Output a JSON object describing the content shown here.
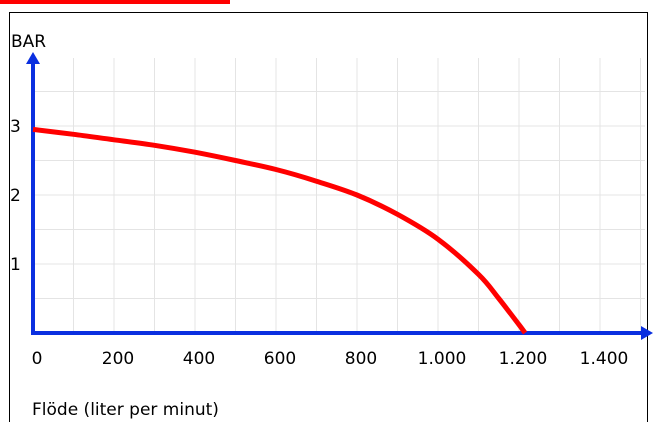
{
  "chart_data": {
    "type": "line",
    "title": "",
    "xlabel": "Flöde (liter per minut)",
    "ylabel": "BAR",
    "xlim": [
      0,
      1400
    ],
    "ylim": [
      0,
      3.6
    ],
    "grid": true,
    "x_ticks": [
      {
        "value": 0,
        "label": "0"
      },
      {
        "value": 200,
        "label": "200"
      },
      {
        "value": 400,
        "label": "400"
      },
      {
        "value": 600,
        "label": "600"
      },
      {
        "value": 800,
        "label": "800"
      },
      {
        "value": 1000,
        "label": "1.000"
      },
      {
        "value": 1200,
        "label": "1.200"
      },
      {
        "value": 1400,
        "label": "1.400"
      }
    ],
    "y_ticks": [
      {
        "value": 1,
        "label": "1"
      },
      {
        "value": 2,
        "label": "2"
      },
      {
        "value": 3,
        "label": "3"
      }
    ],
    "series": [
      {
        "color": "#ff0000",
        "x": [
          0,
          100,
          200,
          300,
          400,
          500,
          600,
          700,
          800,
          900,
          1000,
          1100,
          1150,
          1200,
          1215
        ],
        "y": [
          2.95,
          2.88,
          2.8,
          2.72,
          2.62,
          2.5,
          2.37,
          2.2,
          2.0,
          1.72,
          1.36,
          0.85,
          0.5,
          0.12,
          0
        ]
      }
    ],
    "colors": {
      "axis": "#0a2fe0",
      "grid": "#e4e4e4",
      "frame": "#000000",
      "line": "#ff0000"
    }
  }
}
